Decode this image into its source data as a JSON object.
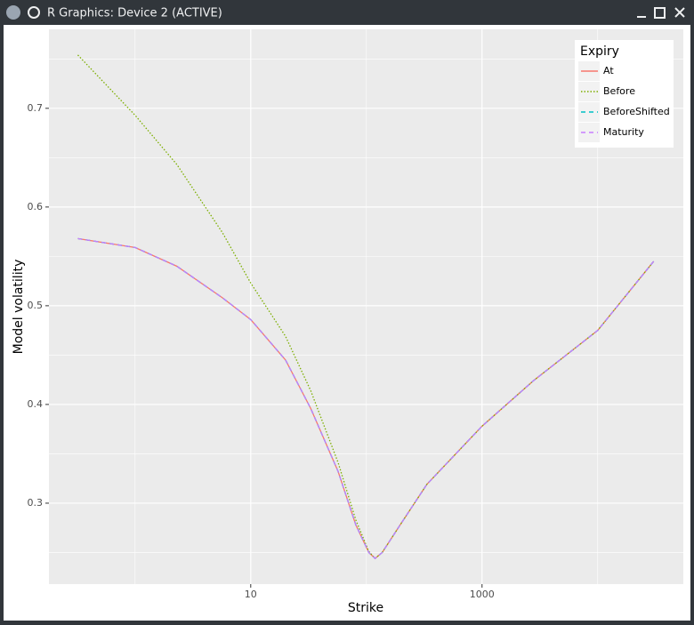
{
  "window": {
    "title": "R Graphics: Device 2 (ACTIVE)"
  },
  "chart_data": {
    "type": "line",
    "x_label": "Strike",
    "y_label": "Model volatility",
    "log_x": true,
    "grid": true,
    "x": [
      0.32,
      1,
      2.3,
      5.7,
      10,
      20,
      33,
      57,
      81,
      105,
      119,
      137,
      196,
      333,
      1000,
      2780,
      10000,
      30500
    ],
    "series": [
      {
        "name": "At",
        "color": "#F8766D",
        "linetype": "solid",
        "values": [
          0.568,
          0.559,
          0.54,
          0.508,
          0.486,
          0.445,
          0.396,
          0.332,
          0.278,
          0.25,
          0.244,
          0.25,
          0.278,
          0.319,
          0.378,
          0.424,
          0.475,
          0.545
        ]
      },
      {
        "name": "Before",
        "color": "#7CAE00",
        "linetype": "dotted",
        "values": [
          0.754,
          0.693,
          0.643,
          0.574,
          0.523,
          0.469,
          0.414,
          0.341,
          0.283,
          0.251,
          0.244,
          0.25,
          0.278,
          0.319,
          0.378,
          0.424,
          0.475,
          0.545
        ]
      },
      {
        "name": "BeforeShifted",
        "color": "#00BFC4",
        "linetype": "dashed",
        "values": [
          0.568,
          0.559,
          0.54,
          0.508,
          0.486,
          0.445,
          0.396,
          0.332,
          0.278,
          0.25,
          0.244,
          0.25,
          0.278,
          0.319,
          0.378,
          0.424,
          0.475,
          0.545
        ]
      },
      {
        "name": "Maturity",
        "color": "#C77CFF",
        "linetype": "dashed",
        "values": [
          0.568,
          0.559,
          0.54,
          0.508,
          0.486,
          0.445,
          0.396,
          0.332,
          0.278,
          0.25,
          0.244,
          0.25,
          0.278,
          0.319,
          0.378,
          0.424,
          0.475,
          0.545
        ]
      }
    ],
    "legend_title": "Expiry",
    "legend_position": "top-right",
    "xlim": [
      0.18,
      55000
    ],
    "xticks": [
      10,
      1000
    ],
    "xminor": [
      1,
      100,
      10000
    ],
    "ylim": [
      0.218,
      0.78
    ],
    "yticks": [
      0.3,
      0.4,
      0.5,
      0.6,
      0.7
    ],
    "yminor": [
      0.25,
      0.35,
      0.45,
      0.55,
      0.65,
      0.75
    ]
  }
}
